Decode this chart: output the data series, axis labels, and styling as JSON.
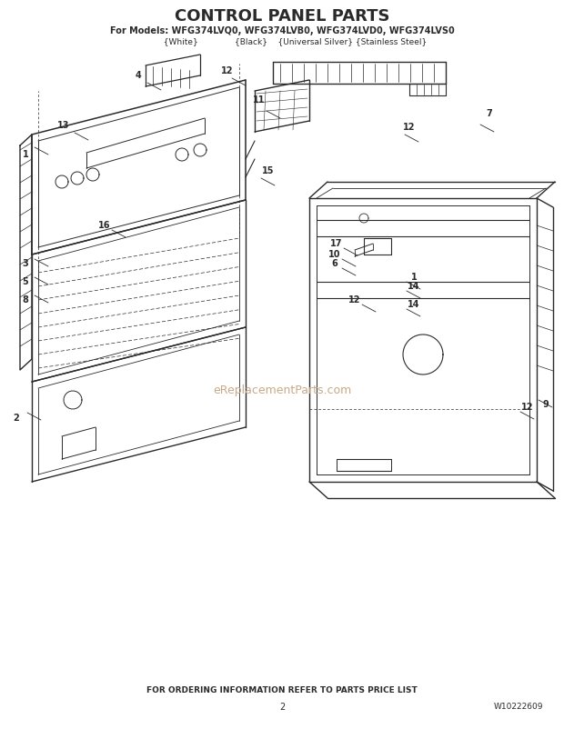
{
  "title": "CONTROL PANEL PARTS",
  "subtitle1": "For Models: WFG374LVQ0, WFG374LVB0, WFG374LVD0, WFG374LVS0",
  "subtitle2": "          {White}              {Black}    {Universal Silver} {Stainless Steel}",
  "footer": "FOR ORDERING INFORMATION REFER TO PARTS PRICE LIST",
  "page_number": "2",
  "part_number": "W10222609",
  "background_color": "#ffffff",
  "line_color": "#2a2a2a",
  "watermark": "eReplacementParts.com",
  "watermark_color": "#c8aa88",
  "fig_width": 6.2,
  "fig_height": 8.02,
  "dpi": 100
}
